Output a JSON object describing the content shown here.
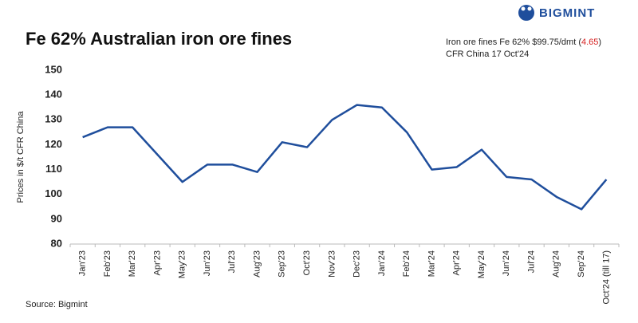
{
  "brand": "BIGMINT",
  "source": "Source: Bigmint",
  "chart_data": {
    "type": "line",
    "title": "Fe 62% Australian iron ore fines",
    "annotation": {
      "prefix": "Iron ore fines Fe 62% $99.75/dmt (",
      "change": "4.65",
      "suffix": ")",
      "line2": "CFR China 17 Oct'24"
    },
    "y_label": "Prices in $/t CFR China",
    "categories": [
      "Jan'23",
      "Feb'23",
      "Mar'23",
      "Apr'23",
      "May'23",
      "Jun'23",
      "Jul'23",
      "Aug'23",
      "Sep'23",
      "Oct'23",
      "Nov'23",
      "Dec'23",
      "Jan'24",
      "Feb'24",
      "Mar'24",
      "Apr'24",
      "May'24",
      "Jun'24",
      "Jul'24",
      "Aug'24",
      "Sep'24",
      "Oct'24 (till 17)"
    ],
    "values": [
      123,
      127,
      127,
      116,
      105,
      112,
      112,
      109,
      121,
      119,
      130,
      136,
      135,
      125,
      110,
      111,
      118,
      107,
      106,
      99,
      94,
      106
    ],
    "color": "#1f4e9c",
    "ylim": [
      80,
      150
    ],
    "yticks": [
      80,
      90,
      100,
      110,
      120,
      130,
      140,
      150
    ]
  }
}
